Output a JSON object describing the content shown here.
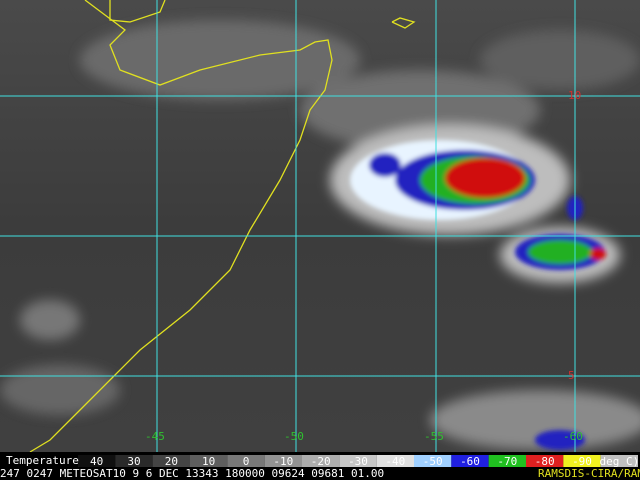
{
  "map": {
    "lat_labels": [
      "10",
      "5"
    ],
    "lon_labels": [
      "-45",
      "-50",
      "-55",
      "-60"
    ],
    "colorbar": {
      "title": "Temperature",
      "labels": [
        "40",
        "30",
        "20",
        "10",
        "0",
        "-10",
        "-20",
        "-30",
        "-40",
        "-50",
        "-60",
        "-70",
        "-80",
        "-90",
        "deg C)"
      ]
    },
    "footer": {
      "info": "247 0247 METEOSAT10   9   6 DEC 13343 180000 09624 09681 01.00",
      "credit": "RAMSDIS-CIRA/RAMM"
    }
  }
}
